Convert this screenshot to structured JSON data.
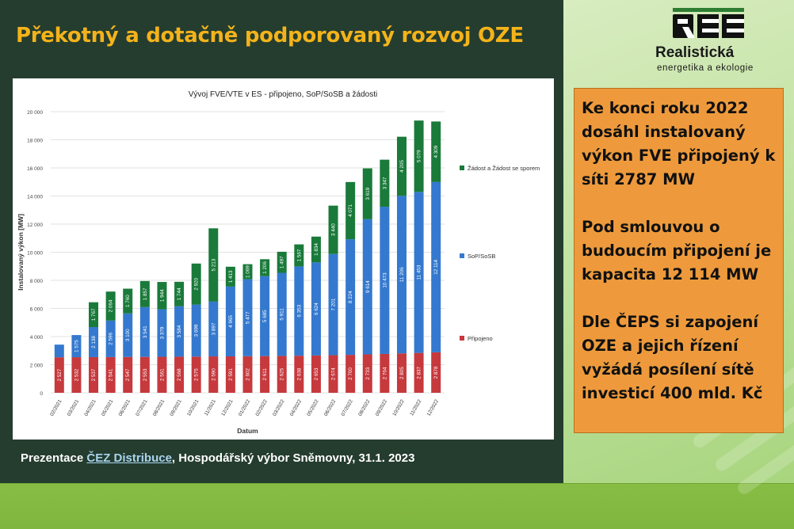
{
  "slide": {
    "title": "Překotný a dotačně podporovaný rozvoj OZE",
    "source": {
      "prefix": "Prezentace ",
      "link": "ČEZ Distribuce",
      "suffix": ", Hospodářský výbor Sněmovny, 31.1. 2023"
    }
  },
  "logo": {
    "mark": "REE",
    "name": "Realistická",
    "tagline": "energetika a ekologie"
  },
  "info": {
    "paragraphs": [
      "Ke konci roku 2022 dosáhl instalovaný výkon FVE připojený k síti 2787 MW",
      "Pod smlouvou o budoucím připojení je kapacita 12 114 MW",
      "Dle ČEPS si zapojení OZE a jejich řízení vyžádá posílení sítě investicí 400 mld. Kč"
    ]
  },
  "colors": {
    "title": "#f4b31a",
    "pripojeno": "#c6393d",
    "sop": "#3479cf",
    "zadost": "#1a7a3a",
    "info_box": "#ee9a3c"
  },
  "chart_data": {
    "type": "bar",
    "stacked": true,
    "title": "Vývoj FVE/VTE v ES - připojeno, SoP/SoSB a žádosti",
    "xlabel": "Datum",
    "ylabel": "Instalovaný výkon [MW]",
    "ylim": [
      0,
      20000
    ],
    "yticks": [
      "0",
      "2 000",
      "4 000",
      "6 000",
      "8 000",
      "10 000",
      "12 000",
      "14 000",
      "16 000",
      "18 000",
      "20 000"
    ],
    "grid": true,
    "legend_position": "right",
    "categories": [
      "02/2021",
      "03/2021",
      "04/2021",
      "05/2021",
      "06/2021",
      "07/2021",
      "08/2021",
      "09/2021",
      "10/2021",
      "11/2021",
      "12/2021",
      "01/2022",
      "02/2022",
      "03/2022",
      "04/2022",
      "05/2022",
      "06/2022",
      "07/2022",
      "08/2022",
      "09/2022",
      "10/2022",
      "11/2022",
      "12/2022"
    ],
    "series": [
      {
        "name": "Připojeno",
        "values": [
          2527,
          2532,
          2537,
          2541,
          2547,
          2553,
          2561,
          2568,
          2575,
          2590,
          2591,
          2602,
          2611,
          2625,
          2638,
          2653,
          2674,
          2700,
          2733,
          2764,
          2805,
          2837,
          2878
        ],
        "labels": [
          "2 527",
          "2 532",
          "2 537",
          "2 541",
          "2 547",
          "2 553",
          "2 561",
          "2 568",
          "2 575",
          "2 590",
          "2 591",
          "2 602",
          "2 611",
          "2 625",
          "2 638",
          "2 653",
          "2 674",
          "2 700",
          "2 733",
          "2 764",
          "2 805",
          "2 837",
          "2 878"
        ]
      },
      {
        "name": "SoP/SoSB",
        "values": [
          900,
          1575,
          2138,
          2596,
          3100,
          3541,
          3379,
          3584,
          3699,
          3897,
          4965,
          5477,
          5685,
          5911,
          6353,
          6624,
          7201,
          8224,
          9614,
          10473,
          11206,
          11453,
          12114
        ],
        "labels": [
          "",
          "1 575",
          "2 138",
          "2 596",
          "3 100",
          "3 541",
          "3 379",
          "3 584",
          "3 699",
          "3 897",
          "4 965",
          "5 477",
          "5 685",
          "5 911",
          "6 353",
          "6 624",
          "7 201",
          "8 224",
          "9 614",
          "10 473",
          "11 206",
          "11 453",
          "12 114"
        ]
      },
      {
        "name": "Žádost a Žádost se sporem",
        "values": [
          0,
          0,
          1767,
          2064,
          1760,
          1857,
          1944,
          1744,
          2920,
          5213,
          1413,
          1069,
          1206,
          1497,
          1567,
          1834,
          3440,
          4071,
          3619,
          3347,
          4205,
          5079,
          4309
        ],
        "labels": [
          "",
          "",
          "1 767",
          "2 064",
          "1 760",
          "1 857",
          "1 944",
          "1 744",
          "2 920",
          "5 213",
          "1 413",
          "1 069",
          "1 206",
          "1 497",
          "1 567",
          "1 834",
          "3 440",
          "4 071",
          "3 619",
          "3 347",
          "4 205",
          "5 079",
          "4 309"
        ]
      }
    ]
  }
}
